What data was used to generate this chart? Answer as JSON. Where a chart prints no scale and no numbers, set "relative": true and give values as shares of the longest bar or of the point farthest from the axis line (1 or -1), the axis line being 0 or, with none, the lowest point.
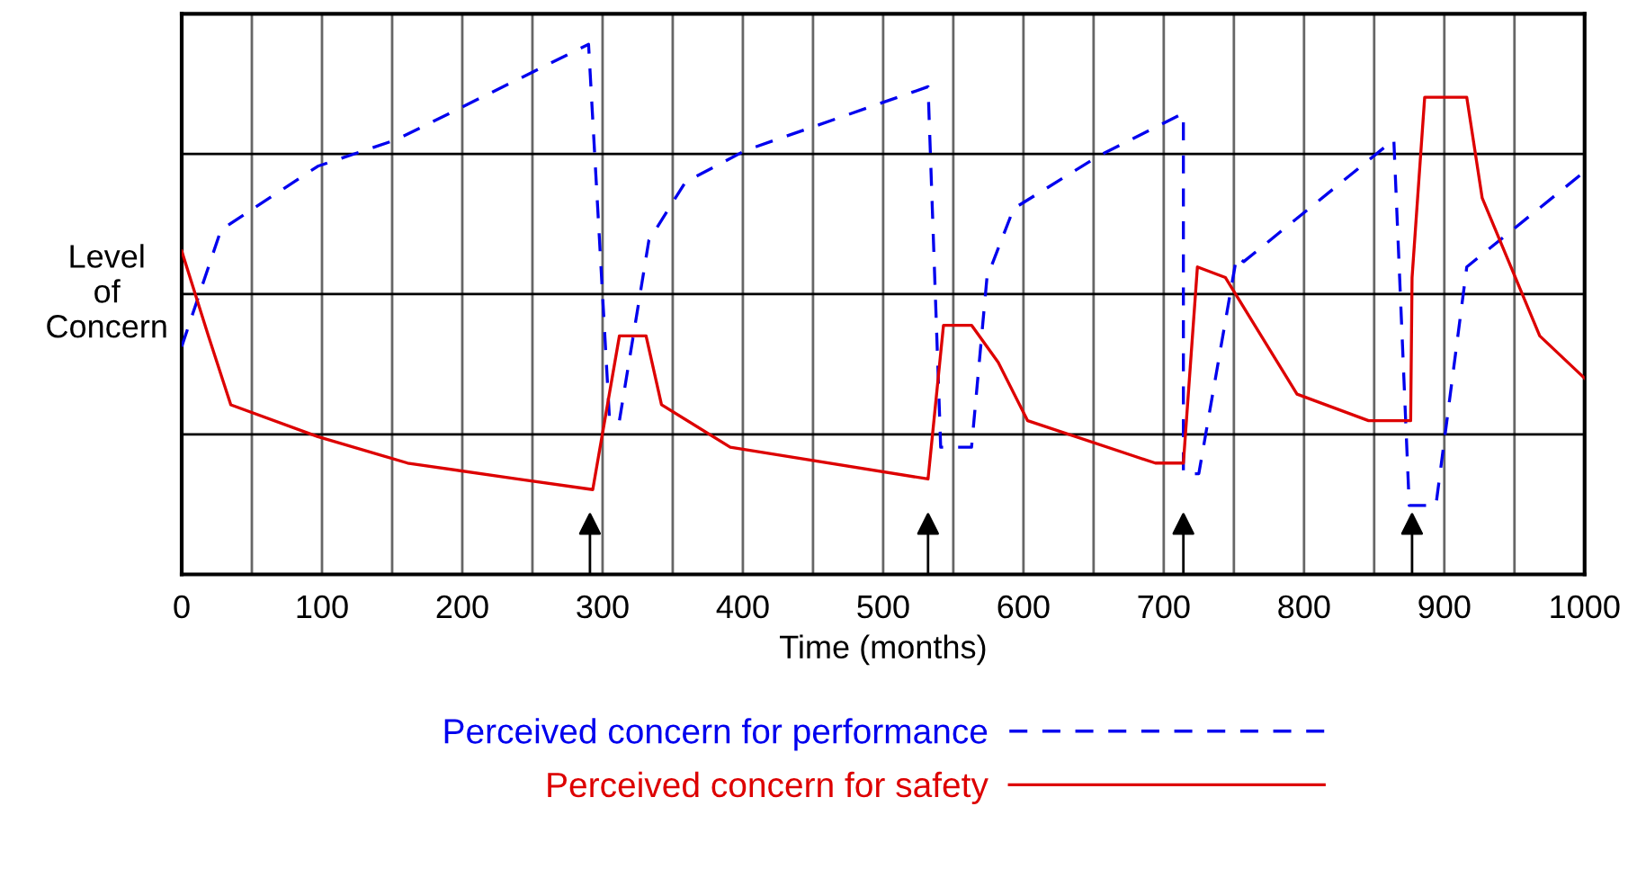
{
  "chart_data": {
    "type": "line",
    "relative": true,
    "xlabel": "Time (months)",
    "ylabel": "Level\nof\nConcern",
    "xlim": [
      0,
      1000
    ],
    "xticks": [
      0,
      {
        "value": 50,
        "label": null
      },
      100,
      {
        "value": 150,
        "label": null
      },
      200,
      {
        "value": 250,
        "label": null
      },
      300,
      {
        "value": 350,
        "label": null
      },
      400,
      {
        "value": 450,
        "label": null
      },
      500,
      {
        "value": 550,
        "label": null
      },
      600,
      {
        "value": 650,
        "label": null
      },
      700,
      {
        "value": 750,
        "label": null
      },
      800,
      {
        "value": 850,
        "label": null
      },
      900,
      {
        "value": 950,
        "label": null
      },
      1000
    ],
    "grid": "x",
    "legend": "bottom",
    "series": [
      {
        "name": "Perceived concern for performance",
        "color": "#0000ee",
        "line_style": "dashed",
        "x": [
          0,
          28,
          97,
          153,
          290,
          305,
          312,
          333,
          359,
          402,
          532,
          541,
          563,
          574,
          593,
          654,
          714,
          714,
          725,
          752,
          757,
          864,
          875,
          894,
          916,
          1000
        ],
        "values": [
          0.43,
          0.65,
          0.77,
          0.82,
          1.0,
          0.29,
          0.29,
          0.63,
          0.74,
          0.8,
          0.92,
          0.24,
          0.24,
          0.56,
          0.69,
          0.79,
          0.87,
          0.19,
          0.19,
          0.6,
          0.59,
          0.82,
          0.13,
          0.13,
          0.58,
          0.76
        ]
      },
      {
        "name": "Perceived concern for safety",
        "color": "#dd0000",
        "line_style": "solid",
        "x": [
          0,
          19,
          35,
          97,
          161,
          239,
          293,
          312,
          331,
          342,
          391,
          532,
          543,
          563,
          582,
          603,
          694,
          714,
          724,
          744,
          795,
          846,
          876,
          877,
          886,
          916,
          927,
          968,
          1000
        ],
        "values": [
          0.61,
          0.45,
          0.32,
          0.26,
          0.21,
          0.18,
          0.16,
          0.45,
          0.45,
          0.32,
          0.24,
          0.18,
          0.47,
          0.47,
          0.4,
          0.29,
          0.21,
          0.21,
          0.58,
          0.56,
          0.34,
          0.29,
          0.29,
          0.56,
          0.9,
          0.9,
          0.71,
          0.45,
          0.37
        ]
      }
    ],
    "ref_lines": [
      {
        "axis": "y",
        "value": 0.264,
        "color": "#000000"
      },
      {
        "axis": "y",
        "value": 0.529,
        "color": "#000000"
      },
      {
        "axis": "y",
        "value": 0.793,
        "color": "#000000"
      },
      {
        "axis": "x",
        "value": 291,
        "color": "#000000"
      },
      {
        "axis": "x",
        "value": 532,
        "color": "#000000"
      },
      {
        "axis": "x",
        "value": 714,
        "color": "#000000"
      },
      {
        "axis": "x",
        "value": 877,
        "color": "#000000"
      }
    ]
  }
}
